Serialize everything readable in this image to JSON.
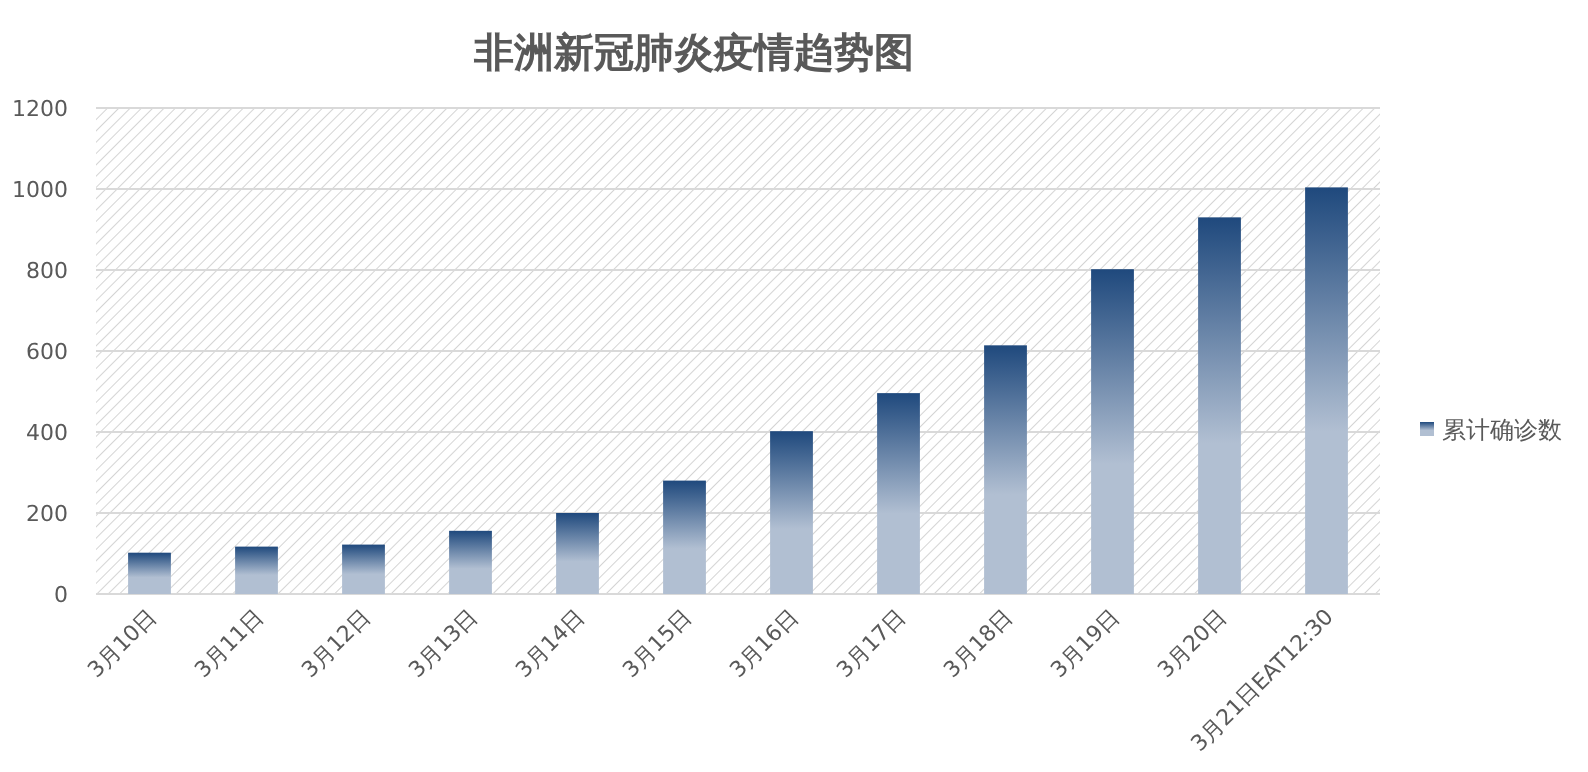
{
  "chart_data": {
    "type": "bar",
    "title": "非洲新冠肺炎疫情趋势图",
    "categories": [
      "3月10日",
      "3月11日",
      "3月12日",
      "3月13日",
      "3月14日",
      "3月15日",
      "3月16日",
      "3月17日",
      "3月18日",
      "3月19日",
      "3月20日",
      "3月21日EAT12:30"
    ],
    "series": [
      {
        "name": "累计确诊数",
        "color": "#1f497d",
        "values": [
          102,
          117,
          122,
          156,
          200,
          280,
          402,
          496,
          614,
          802,
          930,
          1004
        ]
      }
    ],
    "ylim": [
      0,
      1200
    ],
    "yticks": [
      0,
      200,
      400,
      600,
      800,
      1000,
      1200
    ],
    "grid": "y",
    "legend": "right"
  }
}
